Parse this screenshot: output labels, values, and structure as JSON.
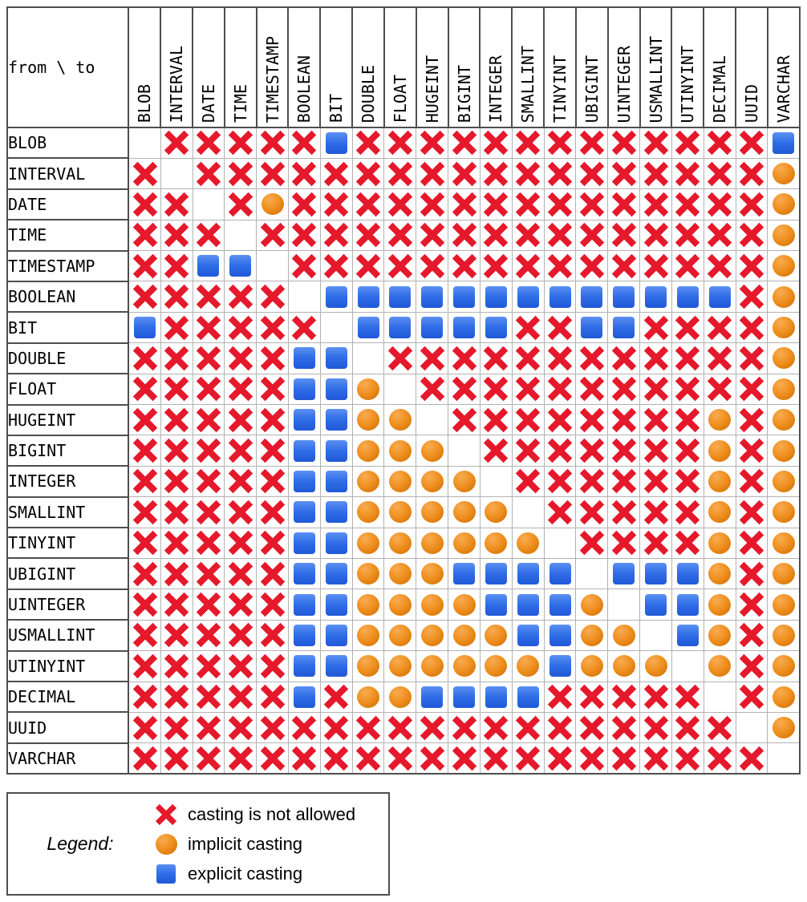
{
  "table": {
    "corner_label": "from \\ to",
    "columns": [
      "BLOB",
      "INTERVAL",
      "DATE",
      "TIME",
      "TIMESTAMP",
      "BOOLEAN",
      "BIT",
      "DOUBLE",
      "FLOAT",
      "HUGEINT",
      "BIGINT",
      "INTEGER",
      "SMALLINT",
      "TINYINT",
      "UBIGINT",
      "UINTEGER",
      "USMALLINT",
      "UTINYINT",
      "DECIMAL",
      "UUID",
      "VARCHAR"
    ],
    "cell_codes": {
      "x": "casting is not allowed",
      "i": "implicit casting",
      "e": "explicit casting",
      "": "same type (diagonal, blank)"
    },
    "rows": [
      {
        "from": "BLOB",
        "cells": [
          "",
          "x",
          "x",
          "x",
          "x",
          "x",
          "e",
          "x",
          "x",
          "x",
          "x",
          "x",
          "x",
          "x",
          "x",
          "x",
          "x",
          "x",
          "x",
          "x",
          "e"
        ]
      },
      {
        "from": "INTERVAL",
        "cells": [
          "x",
          "",
          "x",
          "x",
          "x",
          "x",
          "x",
          "x",
          "x",
          "x",
          "x",
          "x",
          "x",
          "x",
          "x",
          "x",
          "x",
          "x",
          "x",
          "x",
          "i"
        ]
      },
      {
        "from": "DATE",
        "cells": [
          "x",
          "x",
          "",
          "x",
          "i",
          "x",
          "x",
          "x",
          "x",
          "x",
          "x",
          "x",
          "x",
          "x",
          "x",
          "x",
          "x",
          "x",
          "x",
          "x",
          "i"
        ]
      },
      {
        "from": "TIME",
        "cells": [
          "x",
          "x",
          "x",
          "",
          "x",
          "x",
          "x",
          "x",
          "x",
          "x",
          "x",
          "x",
          "x",
          "x",
          "x",
          "x",
          "x",
          "x",
          "x",
          "x",
          "i"
        ]
      },
      {
        "from": "TIMESTAMP",
        "cells": [
          "x",
          "x",
          "e",
          "e",
          "",
          "x",
          "x",
          "x",
          "x",
          "x",
          "x",
          "x",
          "x",
          "x",
          "x",
          "x",
          "x",
          "x",
          "x",
          "x",
          "i"
        ]
      },
      {
        "from": "BOOLEAN",
        "cells": [
          "x",
          "x",
          "x",
          "x",
          "x",
          "",
          "e",
          "e",
          "e",
          "e",
          "e",
          "e",
          "e",
          "e",
          "e",
          "e",
          "e",
          "e",
          "e",
          "x",
          "i"
        ]
      },
      {
        "from": "BIT",
        "cells": [
          "e",
          "x",
          "x",
          "x",
          "x",
          "x",
          "",
          "e",
          "e",
          "e",
          "e",
          "e",
          "x",
          "x",
          "e",
          "e",
          "x",
          "x",
          "x",
          "x",
          "i"
        ]
      },
      {
        "from": "DOUBLE",
        "cells": [
          "x",
          "x",
          "x",
          "x",
          "x",
          "e",
          "e",
          "",
          "x",
          "x",
          "x",
          "x",
          "x",
          "x",
          "x",
          "x",
          "x",
          "x",
          "x",
          "x",
          "i"
        ]
      },
      {
        "from": "FLOAT",
        "cells": [
          "x",
          "x",
          "x",
          "x",
          "x",
          "e",
          "e",
          "i",
          "",
          "x",
          "x",
          "x",
          "x",
          "x",
          "x",
          "x",
          "x",
          "x",
          "x",
          "x",
          "i"
        ]
      },
      {
        "from": "HUGEINT",
        "cells": [
          "x",
          "x",
          "x",
          "x",
          "x",
          "e",
          "e",
          "i",
          "i",
          "",
          "x",
          "x",
          "x",
          "x",
          "x",
          "x",
          "x",
          "x",
          "i",
          "x",
          "i"
        ]
      },
      {
        "from": "BIGINT",
        "cells": [
          "x",
          "x",
          "x",
          "x",
          "x",
          "e",
          "e",
          "i",
          "i",
          "i",
          "",
          "x",
          "x",
          "x",
          "x",
          "x",
          "x",
          "x",
          "i",
          "x",
          "i"
        ]
      },
      {
        "from": "INTEGER",
        "cells": [
          "x",
          "x",
          "x",
          "x",
          "x",
          "e",
          "e",
          "i",
          "i",
          "i",
          "i",
          "",
          "x",
          "x",
          "x",
          "x",
          "x",
          "x",
          "i",
          "x",
          "i"
        ]
      },
      {
        "from": "SMALLINT",
        "cells": [
          "x",
          "x",
          "x",
          "x",
          "x",
          "e",
          "e",
          "i",
          "i",
          "i",
          "i",
          "i",
          "",
          "x",
          "x",
          "x",
          "x",
          "x",
          "i",
          "x",
          "i"
        ]
      },
      {
        "from": "TINYINT",
        "cells": [
          "x",
          "x",
          "x",
          "x",
          "x",
          "e",
          "e",
          "i",
          "i",
          "i",
          "i",
          "i",
          "i",
          "",
          "x",
          "x",
          "x",
          "x",
          "i",
          "x",
          "i"
        ]
      },
      {
        "from": "UBIGINT",
        "cells": [
          "x",
          "x",
          "x",
          "x",
          "x",
          "e",
          "e",
          "i",
          "i",
          "i",
          "e",
          "e",
          "e",
          "e",
          "",
          "e",
          "e",
          "e",
          "i",
          "x",
          "i"
        ]
      },
      {
        "from": "UINTEGER",
        "cells": [
          "x",
          "x",
          "x",
          "x",
          "x",
          "e",
          "e",
          "i",
          "i",
          "i",
          "i",
          "e",
          "e",
          "e",
          "i",
          "",
          "e",
          "e",
          "i",
          "x",
          "i"
        ]
      },
      {
        "from": "USMALLINT",
        "cells": [
          "x",
          "x",
          "x",
          "x",
          "x",
          "e",
          "e",
          "i",
          "i",
          "i",
          "i",
          "i",
          "e",
          "e",
          "i",
          "i",
          "",
          "e",
          "i",
          "x",
          "i"
        ]
      },
      {
        "from": "UTINYINT",
        "cells": [
          "x",
          "x",
          "x",
          "x",
          "x",
          "e",
          "e",
          "i",
          "i",
          "i",
          "i",
          "i",
          "i",
          "e",
          "i",
          "i",
          "i",
          "",
          "i",
          "x",
          "i"
        ]
      },
      {
        "from": "DECIMAL",
        "cells": [
          "x",
          "x",
          "x",
          "x",
          "x",
          "e",
          "x",
          "i",
          "i",
          "e",
          "e",
          "e",
          "e",
          "x",
          "x",
          "x",
          "x",
          "x",
          "",
          "x",
          "i"
        ]
      },
      {
        "from": "UUID",
        "cells": [
          "x",
          "x",
          "x",
          "x",
          "x",
          "x",
          "x",
          "x",
          "x",
          "x",
          "x",
          "x",
          "x",
          "x",
          "x",
          "x",
          "x",
          "x",
          "x",
          "",
          "i"
        ]
      },
      {
        "from": "VARCHAR",
        "cells": [
          "x",
          "x",
          "x",
          "x",
          "x",
          "x",
          "x",
          "x",
          "x",
          "x",
          "x",
          "x",
          "x",
          "x",
          "x",
          "x",
          "x",
          "x",
          "x",
          "x",
          ""
        ]
      }
    ]
  },
  "legend": {
    "title": "Legend:",
    "items": [
      {
        "symbol": "x",
        "label": "casting is not allowed"
      },
      {
        "symbol": "i",
        "label": "implicit casting"
      },
      {
        "symbol": "e",
        "label": "explicit casting"
      }
    ]
  },
  "colors": {
    "not_allowed_red": "#E5192B",
    "implicit_orange": "#EE8F1F",
    "explicit_blue": "#2F6CE6",
    "grid_light": "#B2B2B2",
    "grid_dark": "#4E4E4E"
  }
}
